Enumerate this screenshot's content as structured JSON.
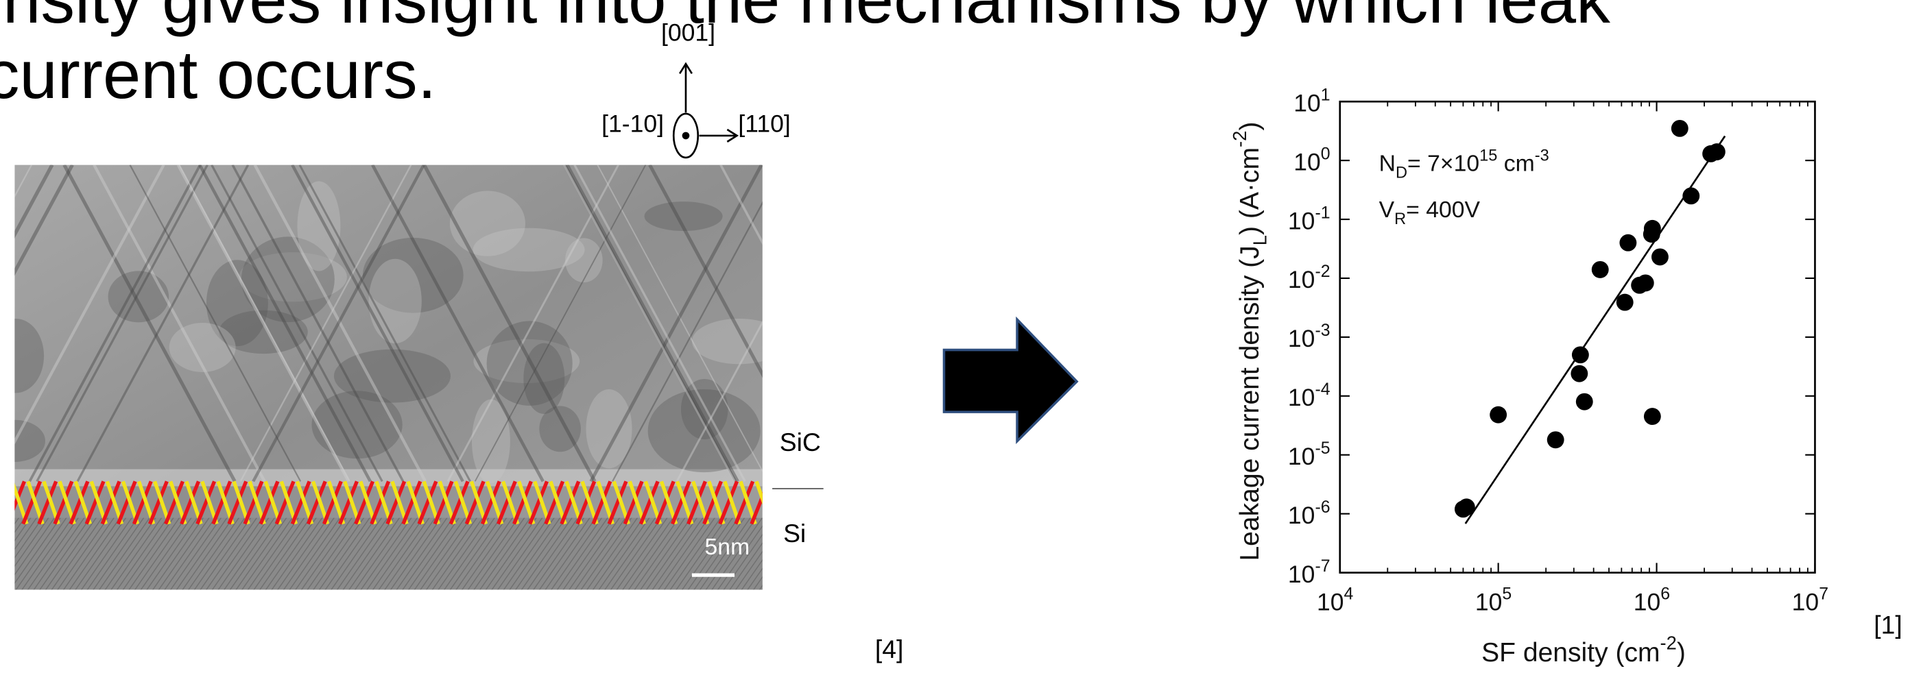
{
  "slide": {
    "text_lines": [
      "density gives insight into the mechanisms by which leak",
      "current occurs."
    ]
  },
  "micrograph": {
    "direction_labels": [
      "[001]",
      "[1-10]",
      "[110]"
    ],
    "layer_labels": [
      "SiC",
      "Si"
    ],
    "scale_bar": "5nm",
    "reference": "[4]"
  },
  "chart_data": {
    "type": "scatter",
    "reference": "[1]",
    "xlabel_parts": [
      "SF density (cm",
      "-2",
      ")"
    ],
    "ylabel_parts": [
      "Leakage current density (J",
      "L",
      ") (A·cm",
      "-2",
      ")"
    ],
    "annotations": [
      [
        "N",
        "D",
        "= 7×10",
        "15",
        " cm",
        "-3"
      ],
      [
        "V",
        "R",
        "= 400V"
      ]
    ],
    "x": [
      60000,
      63000,
      100000,
      230000,
      330000,
      325000,
      350000,
      440000,
      630000,
      660000,
      780000,
      850000,
      930000,
      940000,
      940000,
      1050000,
      1400000,
      1650000,
      2200000,
      2400000
    ],
    "y": [
      1.2e-06,
      1.3e-06,
      4.8e-05,
      1.8e-05,
      0.0005,
      0.00024,
      8e-05,
      0.014,
      0.0039,
      0.04,
      0.0076,
      0.0083,
      0.056,
      0.07,
      4.5e-05,
      0.023,
      3.5,
      0.25,
      1.3,
      1.4
    ],
    "color": "#000000",
    "fit_line": {
      "x": [
        62000,
        2700000
      ],
      "y": [
        6.8e-07,
        2.6
      ]
    },
    "xscale": "log",
    "yscale": "log",
    "xlim": [
      10000,
      10000000
    ],
    "ylim": [
      1e-07,
      10
    ],
    "xticks": [
      {
        "value": 10000,
        "label": "10",
        "exponent": "4"
      },
      {
        "value": 100000,
        "label": "10",
        "exponent": "5"
      },
      {
        "value": 1000000,
        "label": "10",
        "exponent": "6"
      },
      {
        "value": 10000000,
        "label": "10",
        "exponent": "7"
      }
    ],
    "yticks": [
      {
        "value": 1e-07,
        "label": "10",
        "exponent": "-7"
      },
      {
        "value": 1e-06,
        "label": "10",
        "exponent": "-6"
      },
      {
        "value": 1e-05,
        "label": "10",
        "exponent": "-5"
      },
      {
        "value": 0.0001,
        "label": "10",
        "exponent": "-4"
      },
      {
        "value": 0.001,
        "label": "10",
        "exponent": "-3"
      },
      {
        "value": 0.01,
        "label": "10",
        "exponent": "-2"
      },
      {
        "value": 0.1,
        "label": "10",
        "exponent": "-1"
      },
      {
        "value": 1,
        "label": "10",
        "exponent": "0"
      },
      {
        "value": 10,
        "label": "10",
        "exponent": "1"
      }
    ]
  }
}
